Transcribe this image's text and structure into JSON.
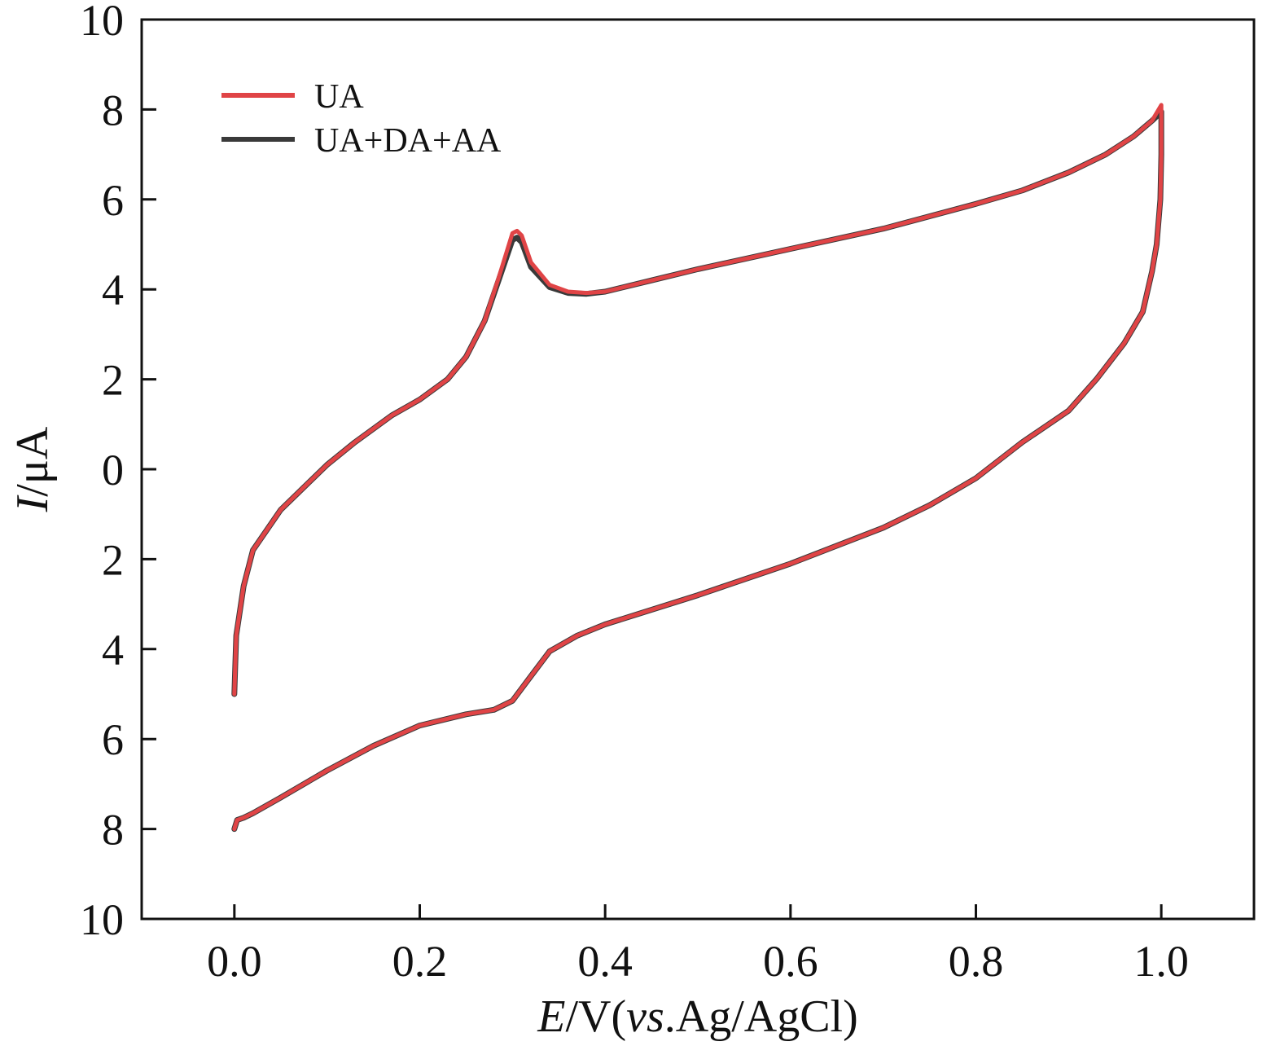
{
  "chart_data": {
    "type": "line",
    "xlabel_parts": {
      "var": "E",
      "unit": "/V(",
      "vs": "vs",
      "ref": ".Ag/AgCl)"
    },
    "ylabel_parts": {
      "var": "I",
      "unit": "/μA"
    },
    "xlim": [
      -0.1,
      1.1
    ],
    "ylim": [
      -10,
      10
    ],
    "xticks": [
      0.0,
      0.2,
      0.4,
      0.6,
      0.8,
      1.0
    ],
    "xtick_labels": [
      "0.0",
      "0.2",
      "0.4",
      "0.6",
      "0.8",
      "1.0"
    ],
    "yticks": [
      10,
      8,
      6,
      4,
      2,
      0,
      -2,
      -4,
      -6,
      -8,
      -10
    ],
    "ytick_labels": [
      "10",
      "8",
      "6",
      "4",
      "2",
      "0",
      "2",
      "4",
      "6",
      "8",
      "10"
    ],
    "grid": false,
    "legend_position": "top-left",
    "series": [
      {
        "name": "UA+DA+AA",
        "color": "#3a3a3a",
        "x": [
          0.0,
          0.002,
          0.01,
          0.02,
          0.05,
          0.08,
          0.1,
          0.13,
          0.17,
          0.2,
          0.23,
          0.25,
          0.27,
          0.285,
          0.3,
          0.305,
          0.31,
          0.32,
          0.34,
          0.36,
          0.38,
          0.4,
          0.45,
          0.5,
          0.6,
          0.7,
          0.8,
          0.85,
          0.9,
          0.94,
          0.97,
          0.99,
          1.0,
          1.0,
          0.999,
          0.995,
          0.99,
          0.98,
          0.96,
          0.93,
          0.9,
          0.85,
          0.8,
          0.75,
          0.7,
          0.6,
          0.5,
          0.4,
          0.37,
          0.34,
          0.32,
          0.3,
          0.28,
          0.25,
          0.2,
          0.15,
          0.1,
          0.05,
          0.02,
          0.01,
          0.003,
          0.0
        ],
        "y": [
          -5.0,
          -3.7,
          -2.6,
          -1.8,
          -0.9,
          -0.3,
          0.1,
          0.6,
          1.2,
          1.55,
          2.0,
          2.5,
          3.3,
          4.2,
          5.1,
          5.15,
          5.05,
          4.5,
          4.05,
          3.92,
          3.9,
          3.95,
          4.2,
          4.45,
          4.9,
          5.35,
          5.9,
          6.2,
          6.6,
          7.0,
          7.4,
          7.75,
          7.95,
          7.0,
          6.0,
          5.0,
          4.4,
          3.5,
          2.8,
          2.0,
          1.3,
          0.6,
          -0.2,
          -0.8,
          -1.3,
          -2.1,
          -2.8,
          -3.45,
          -3.7,
          -4.05,
          -4.6,
          -5.15,
          -5.35,
          -5.45,
          -5.7,
          -6.15,
          -6.7,
          -7.3,
          -7.65,
          -7.75,
          -7.8,
          -8.0
        ]
      },
      {
        "name": "UA",
        "color": "#e04446",
        "x": [
          0.0,
          0.002,
          0.01,
          0.02,
          0.05,
          0.08,
          0.1,
          0.13,
          0.17,
          0.2,
          0.23,
          0.25,
          0.27,
          0.285,
          0.3,
          0.305,
          0.31,
          0.32,
          0.34,
          0.36,
          0.38,
          0.4,
          0.45,
          0.5,
          0.6,
          0.7,
          0.8,
          0.85,
          0.9,
          0.94,
          0.97,
          0.99,
          1.0,
          1.0,
          0.999,
          0.995,
          0.99,
          0.98,
          0.96,
          0.93,
          0.9,
          0.85,
          0.8,
          0.75,
          0.7,
          0.6,
          0.5,
          0.4,
          0.37,
          0.34,
          0.32,
          0.3,
          0.28,
          0.25,
          0.2,
          0.15,
          0.1,
          0.05,
          0.02,
          0.01,
          0.003,
          0.0
        ],
        "y": [
          -5.0,
          -3.7,
          -2.6,
          -1.8,
          -0.9,
          -0.3,
          0.1,
          0.6,
          1.2,
          1.55,
          2.0,
          2.5,
          3.3,
          4.25,
          5.25,
          5.3,
          5.2,
          4.6,
          4.1,
          3.95,
          3.92,
          3.95,
          4.2,
          4.45,
          4.9,
          5.35,
          5.9,
          6.2,
          6.6,
          7.0,
          7.4,
          7.75,
          8.1,
          7.0,
          6.0,
          5.0,
          4.4,
          3.5,
          2.8,
          2.0,
          1.3,
          0.6,
          -0.2,
          -0.8,
          -1.3,
          -2.1,
          -2.8,
          -3.45,
          -3.7,
          -4.05,
          -4.6,
          -5.15,
          -5.35,
          -5.45,
          -5.7,
          -6.15,
          -6.7,
          -7.3,
          -7.65,
          -7.75,
          -7.8,
          -8.0
        ]
      }
    ],
    "legend_order": [
      1,
      0
    ]
  }
}
